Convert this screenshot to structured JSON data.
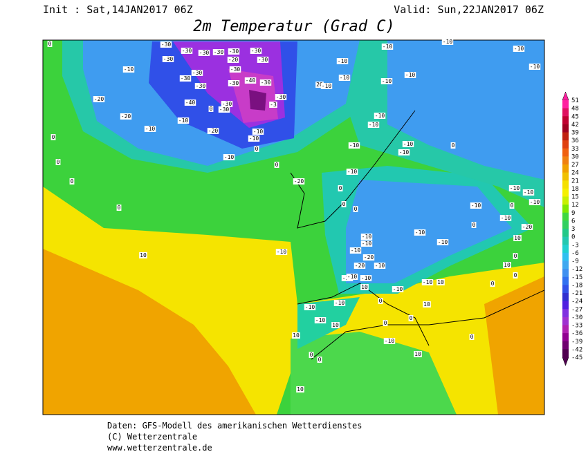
{
  "header": {
    "init": "Init : Sat,14JAN2017 06Z",
    "valid": "Valid: Sun,22JAN2017 06Z",
    "title": "2m Temperatur (Grad C)"
  },
  "colorbar": {
    "labels": [
      51,
      48,
      45,
      42,
      39,
      36,
      33,
      30,
      27,
      24,
      21,
      18,
      15,
      12,
      9,
      6,
      3,
      0,
      -3,
      -6,
      -9,
      -12,
      -15,
      -18,
      -21,
      -24,
      -27,
      -30,
      -33,
      -36,
      -39,
      -42,
      -45
    ]
  },
  "map": {
    "contour_labels": [
      "0",
      "-30",
      "-30",
      "-30",
      "-30",
      "-30",
      "-30",
      "-30",
      "-20",
      "-30",
      "-10",
      "-30",
      "-30",
      "-30",
      "-40",
      "-30",
      "-30",
      "-30",
      "-30",
      "-30",
      "-30",
      "-40",
      "-3",
      "0",
      "-20",
      "-20",
      "-10",
      "-10",
      "-20",
      "-10",
      "-10",
      "0",
      "0",
      "-10",
      "0",
      "0",
      "0",
      "0",
      "-20",
      "-10",
      "-10",
      "20",
      "-10",
      "-10",
      "-10",
      "-10",
      "-10",
      "-10",
      "-10",
      "-10",
      "-10",
      "-10",
      "-10",
      "0",
      "-10",
      "-10",
      "0",
      "0",
      "0",
      "-10",
      "-10",
      "-10",
      "0",
      "-10",
      "0",
      "-10",
      "-20",
      "-10",
      "-10",
      "-10",
      "-10",
      "-10",
      "-20",
      "-20",
      "-10",
      "-20",
      "-10",
      "-10",
      "10",
      "-10",
      "-10",
      "10",
      "0",
      "0",
      "10",
      "0",
      "10",
      "10",
      "-10",
      "-10",
      "-10",
      "-10",
      "10",
      "10",
      "0",
      "0",
      "0",
      "10",
      "0",
      "0",
      "-10",
      "10",
      "0",
      "10"
    ]
  },
  "footer": {
    "lines": [
      "Daten: GFS-Modell des amerikanischen Wetterdienstes",
      "(C) Wetterzentrale",
      "www.wetterzentrale.de"
    ]
  }
}
